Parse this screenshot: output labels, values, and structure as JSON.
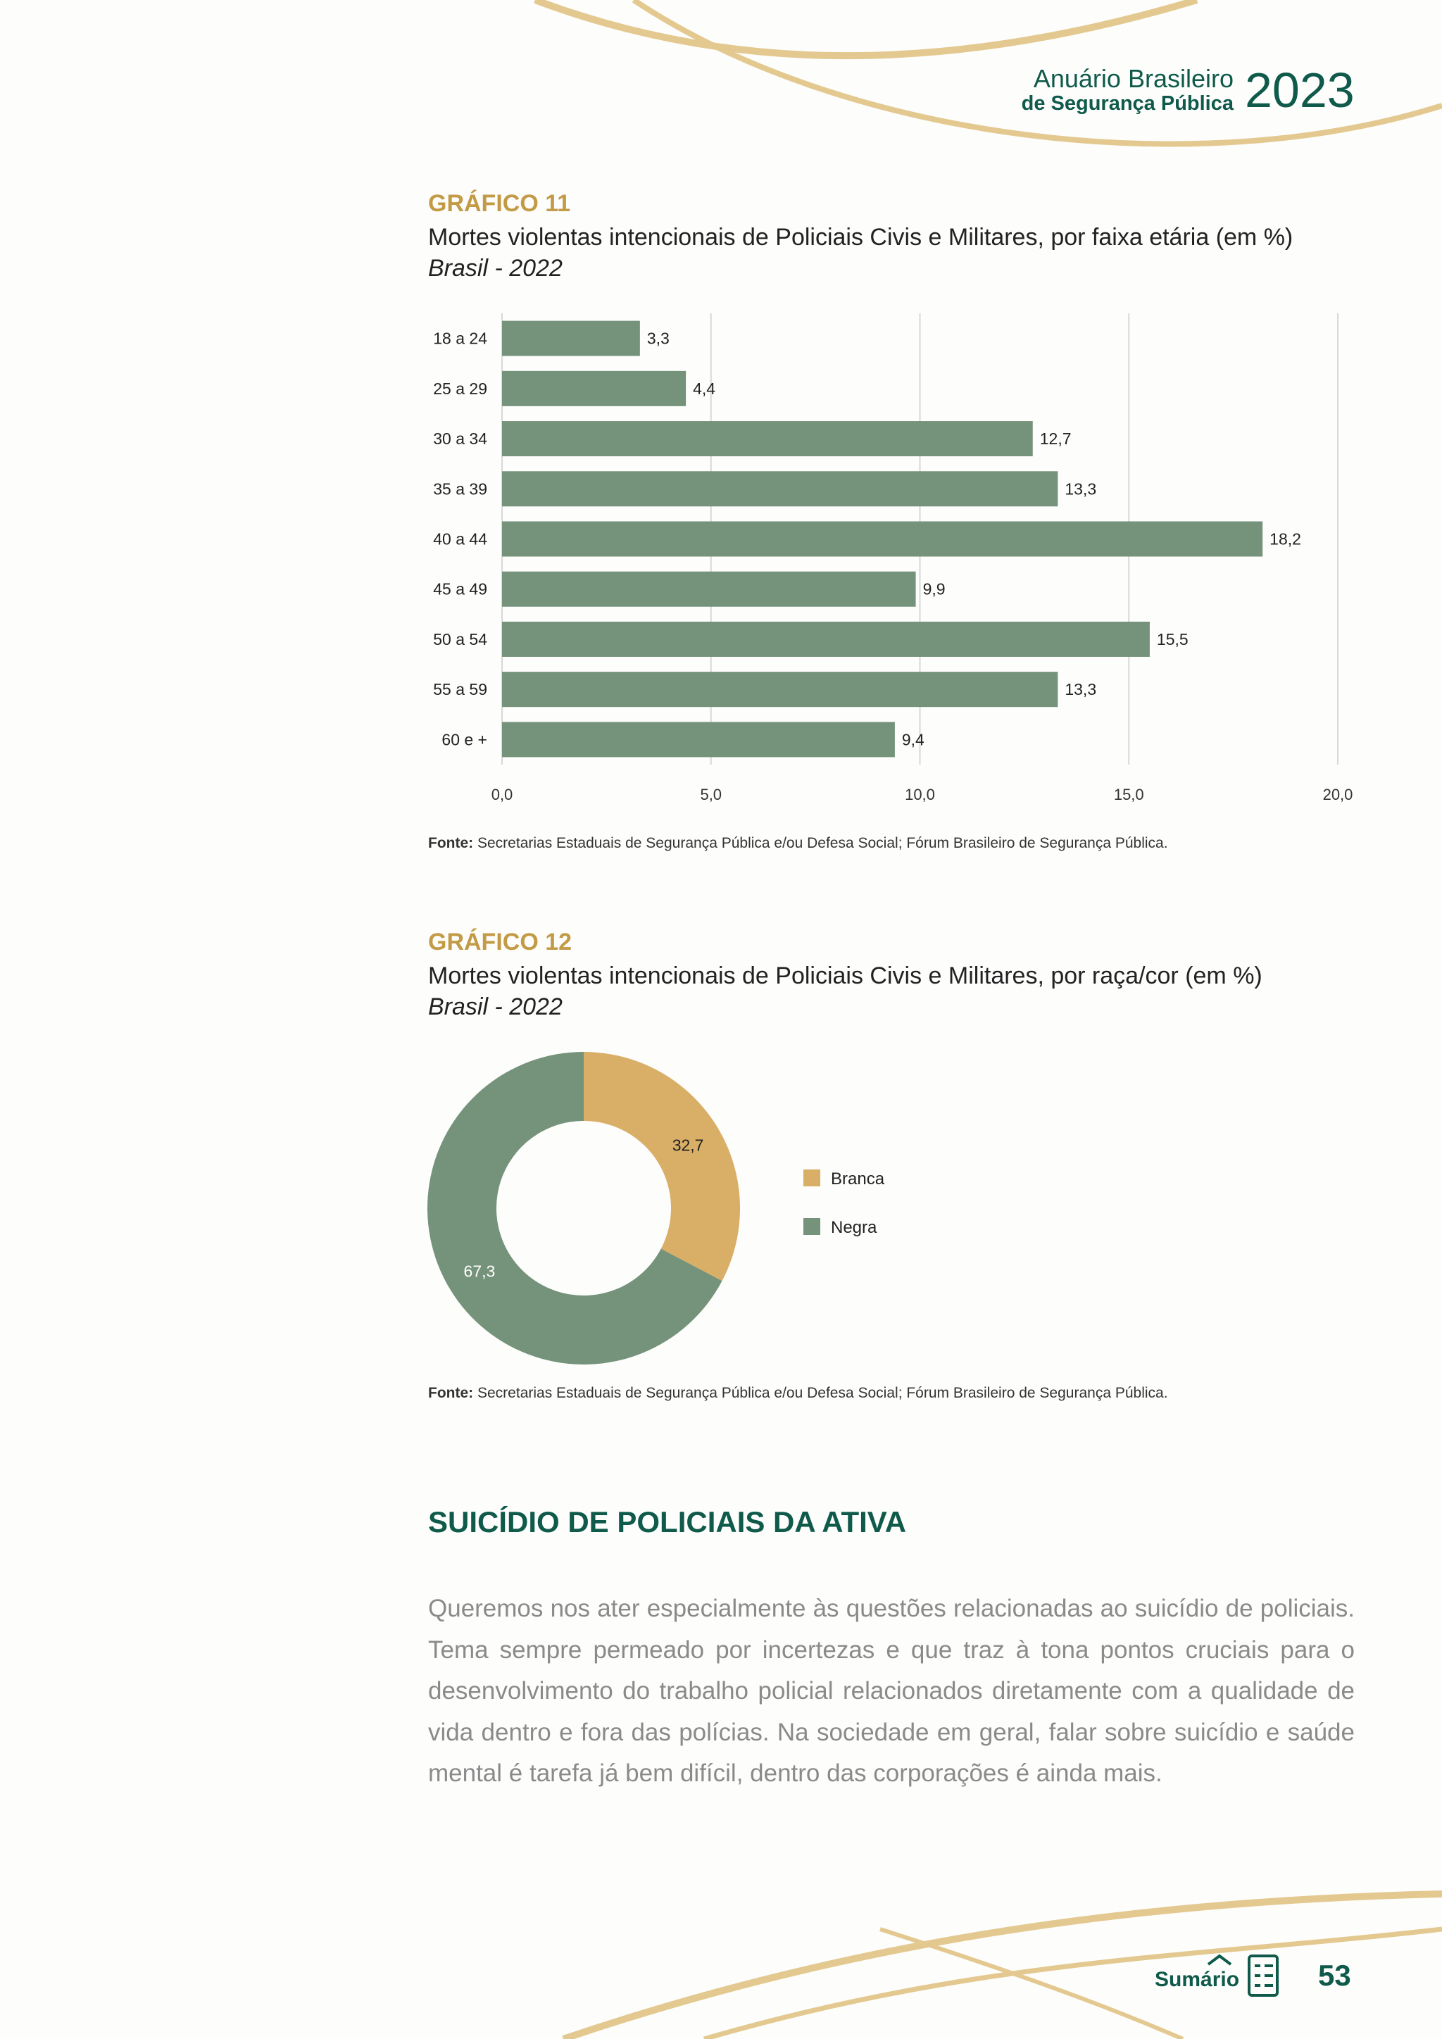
{
  "header": {
    "line1": "Anuário Brasileiro",
    "line2": "de Segurança Pública",
    "year": "2023"
  },
  "chart_data": [
    {
      "type": "bar",
      "label": "GRÁFICO 11",
      "title": "Mortes violentas intencionais de Policiais Civis e Militares, por faixa etária (em %)",
      "subtitle": "Brasil - 2022",
      "categories": [
        "18 a 24",
        "25 a 29",
        "30 a 34",
        "35 a 39",
        "40 a 44",
        "45 a 49",
        "50 a 54",
        "55 a 59",
        "60 e +"
      ],
      "values": [
        3.3,
        4.4,
        12.7,
        13.3,
        18.2,
        9.9,
        15.5,
        13.3,
        9.4
      ],
      "value_labels": [
        "3,3",
        "4,4",
        "12,7",
        "13,3",
        "18,2",
        "9,9",
        "15,5",
        "13,3",
        "9,4"
      ],
      "color": "#75927a",
      "orientation": "horizontal",
      "xlim": [
        0,
        20
      ],
      "xticks": [
        {
          "value": 0,
          "label": "0,0"
        },
        {
          "value": 5,
          "label": "5,0"
        },
        {
          "value": 10,
          "label": "10,0"
        },
        {
          "value": 15,
          "label": "15,0"
        },
        {
          "value": 20,
          "label": "20,0"
        }
      ],
      "grid": true,
      "source_label": "Fonte:",
      "source": "Secretarias Estaduais de Segurança Pública e/ou Defesa Social; Fórum Brasileiro de Segurança Pública."
    },
    {
      "type": "donut",
      "label": "GRÁFICO 12",
      "title": "Mortes violentas intencionais de Policiais Civis e Militares, por raça/cor (em %)",
      "subtitle": "Brasil - 2022",
      "categories": [
        "Branca",
        "Negra"
      ],
      "values": [
        32.7,
        67.3
      ],
      "value_labels": [
        "32,7",
        "67,3"
      ],
      "colors": [
        "#d9ae66",
        "#75927a"
      ],
      "legend": "right",
      "source_label": "Fonte:",
      "source": "Secretarias Estaduais de Segurança Pública e/ou Defesa Social; Fórum Brasileiro de Segurança Pública."
    }
  ],
  "section": {
    "heading": "SUICÍDIO DE POLICIAIS DA ATIVA",
    "paragraph": "Queremos nos ater especialmente às questões relacionadas ao suicídio de policiais. Tema sempre permeado por incertezas e que traz à tona pontos cruciais para o desenvolvimento do trabalho policial relacionados diretamente com a qualidade de vida dentro e fora das polícias. Na sociedade em geral, falar sobre suicídio e saúde mental é tarefa já bem difícil, dentro das corporações é ainda mais."
  },
  "footer": {
    "summary": "Sumário",
    "page": "53"
  }
}
